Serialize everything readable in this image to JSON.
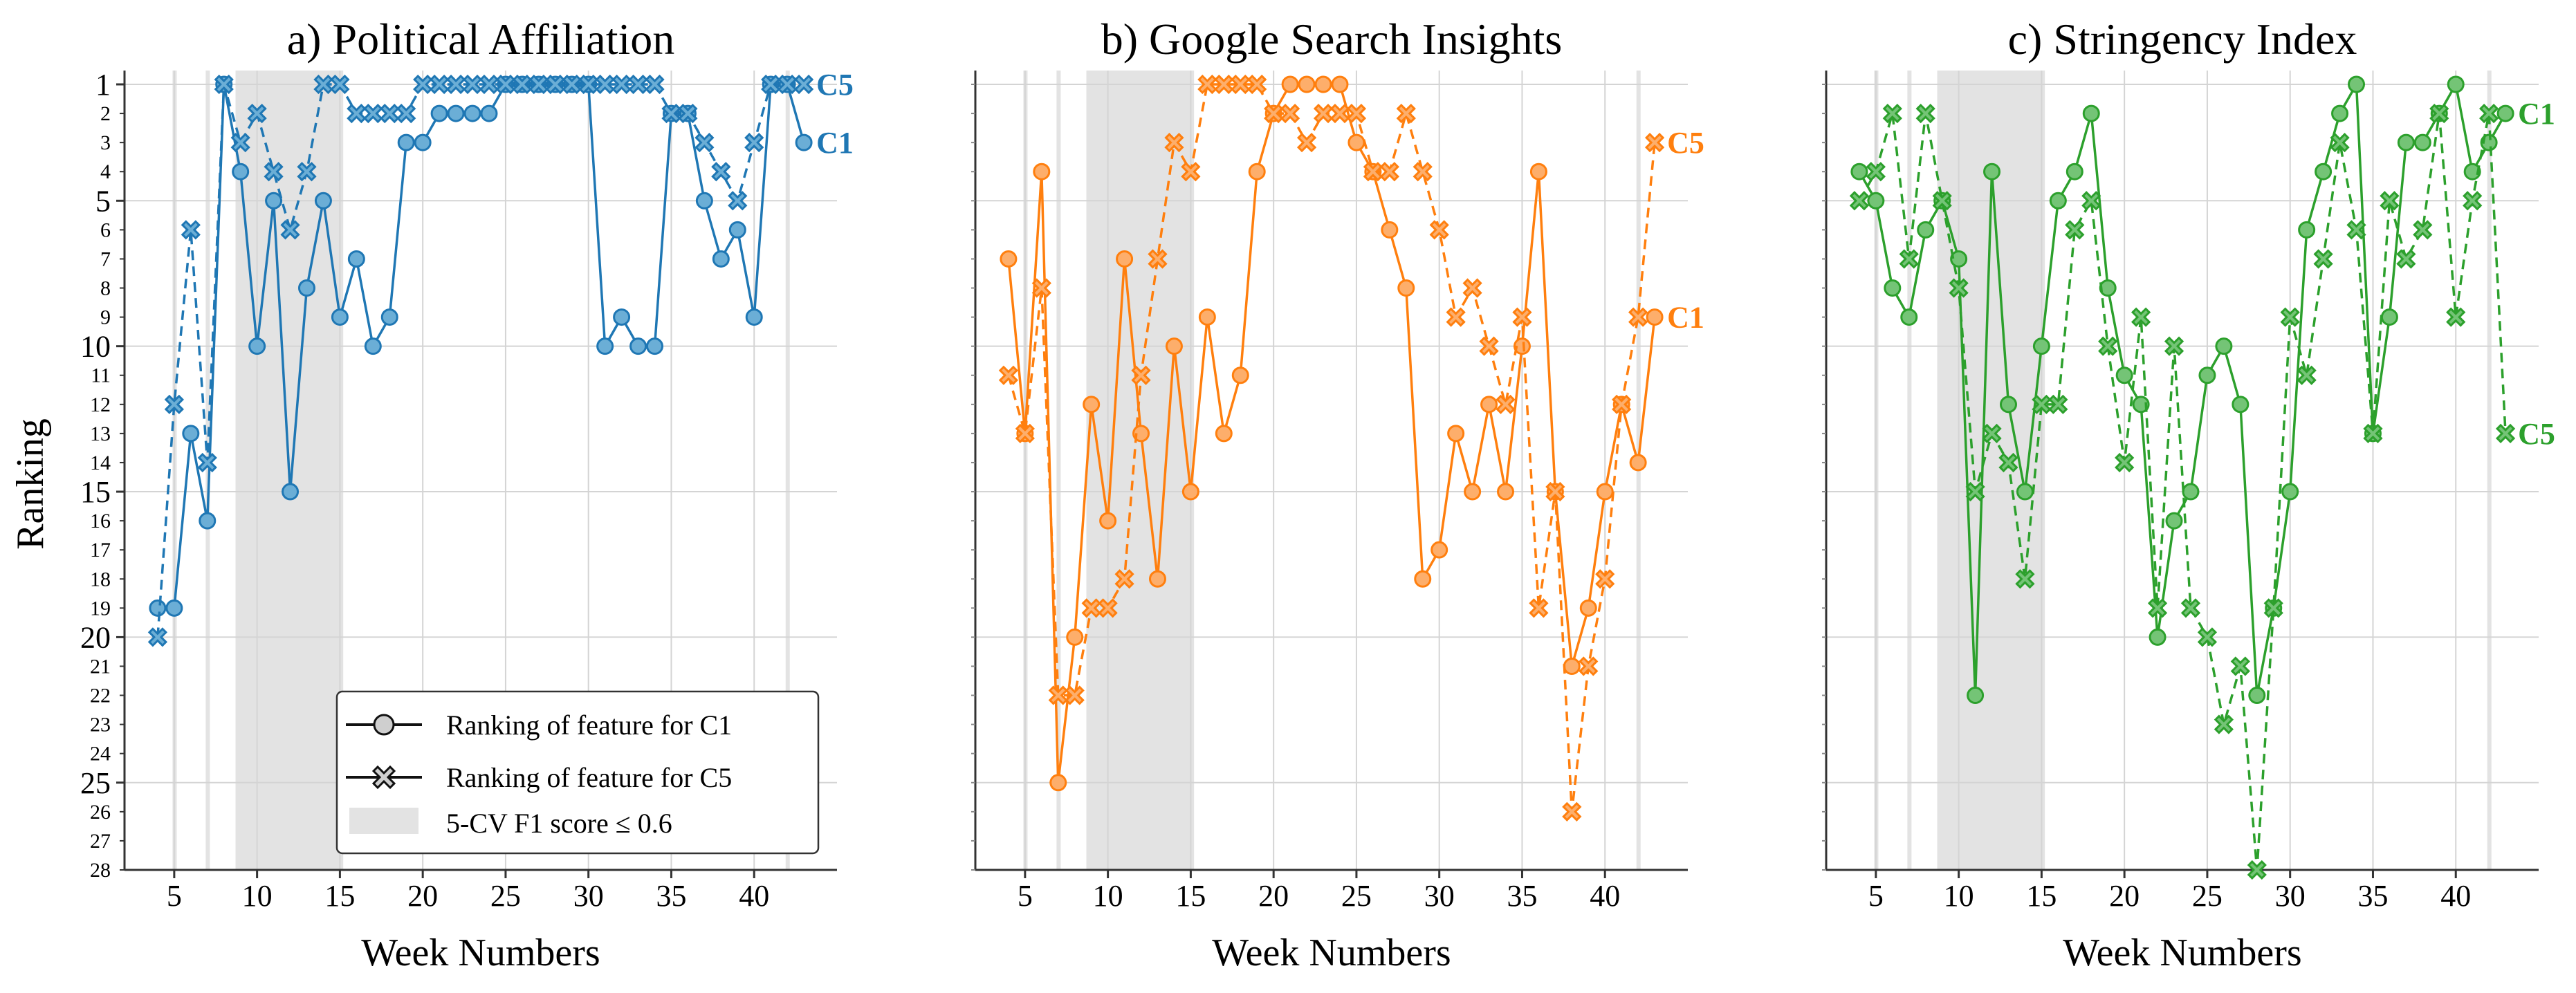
{
  "figure": {
    "ylabel": "Ranking",
    "xlabel": "Week Numbers"
  },
  "legend": {
    "c1_label": "Ranking of feature for C1",
    "c5_label": "Ranking of feature for C5",
    "shade_label": "5-CV F1 score  ≤  0.6"
  },
  "colors": {
    "political": "#1f77b4",
    "political_light": "#6baed6",
    "google": "#ff7f0e",
    "google_light": "#fdae6b",
    "stringency": "#2ca02c",
    "stringency_light": "#74c476",
    "shade": "#e3e3e3",
    "grid": "#d4d4d4"
  },
  "chart_data": [
    {
      "type": "line",
      "title": "a) Political Affiliation",
      "xlabel": "Week Numbers",
      "ylabel": "Ranking",
      "xlim": [
        2,
        45
      ],
      "ylim": [
        28,
        1
      ],
      "x_ticks": [
        5,
        10,
        15,
        20,
        25,
        30,
        35,
        40
      ],
      "y_ticks_major": [
        1,
        5,
        10,
        15,
        20,
        25
      ],
      "y_ticks_minor": [
        2,
        3,
        4,
        6,
        7,
        8,
        9,
        11,
        12,
        13,
        14,
        16,
        17,
        18,
        19,
        21,
        22,
        23,
        24,
        26,
        27,
        28
      ],
      "shaded_weeks": [
        [
          4.9,
          5.1
        ],
        [
          6.9,
          7.1
        ],
        [
          8.7,
          15.2
        ],
        [
          41.9,
          42.1
        ]
      ],
      "series": [
        {
          "name": "C1",
          "marker": "circle",
          "linestyle": "solid",
          "x": [
            4,
            5,
            6,
            7,
            8,
            9,
            10,
            11,
            12,
            13,
            14,
            15,
            16,
            17,
            18,
            19,
            20,
            21,
            22,
            23,
            24,
            25,
            26,
            27,
            28,
            29,
            30,
            31,
            32,
            33,
            34,
            35,
            36,
            37,
            38,
            39,
            40,
            41,
            42,
            43
          ],
          "values": [
            19,
            19,
            13,
            16,
            1,
            4,
            10,
            5,
            15,
            8,
            5,
            9,
            7,
            10,
            9,
            3,
            3,
            2,
            2,
            2,
            2,
            1,
            1,
            1,
            1,
            1,
            1,
            10,
            9,
            10,
            10,
            2,
            2,
            5,
            7,
            6,
            9,
            1,
            1,
            3
          ],
          "end_label": "C1"
        },
        {
          "name": "C5",
          "marker": "x",
          "linestyle": "dashed",
          "x": [
            4,
            5,
            6,
            7,
            8,
            9,
            10,
            11,
            12,
            13,
            14,
            15,
            16,
            17,
            18,
            19,
            20,
            21,
            22,
            23,
            24,
            25,
            26,
            27,
            28,
            29,
            30,
            31,
            32,
            33,
            34,
            35,
            36,
            37,
            38,
            39,
            40,
            41,
            42,
            43
          ],
          "values": [
            20,
            12,
            6,
            14,
            1,
            3,
            2,
            4,
            6,
            4,
            1,
            1,
            2,
            2,
            2,
            2,
            1,
            1,
            1,
            1,
            1,
            1,
            1,
            1,
            1,
            1,
            1,
            1,
            1,
            1,
            1,
            2,
            2,
            3,
            4,
            5,
            3,
            1,
            1,
            1
          ],
          "end_label": "C5"
        }
      ]
    },
    {
      "type": "line",
      "title": "b) Google Search Insights",
      "xlabel": "Week Numbers",
      "xlim": [
        2,
        45
      ],
      "ylim": [
        28,
        1
      ],
      "x_ticks": [
        5,
        10,
        15,
        20,
        25,
        30,
        35,
        40
      ],
      "shaded_weeks": [
        [
          4.9,
          5.1
        ],
        [
          6.9,
          7.1
        ],
        [
          8.7,
          15.2
        ],
        [
          41.9,
          42.1
        ]
      ],
      "series": [
        {
          "name": "C1",
          "marker": "circle",
          "linestyle": "solid",
          "x": [
            4,
            5,
            6,
            7,
            8,
            9,
            10,
            11,
            12,
            13,
            14,
            15,
            16,
            17,
            18,
            19,
            20,
            21,
            22,
            23,
            24,
            25,
            26,
            27,
            28,
            29,
            30,
            31,
            32,
            33,
            34,
            35,
            36,
            37,
            38,
            39,
            40,
            41,
            42,
            43
          ],
          "values": [
            7,
            13,
            4,
            25,
            20,
            12,
            16,
            7,
            13,
            18,
            10,
            15,
            9,
            13,
            11,
            4,
            2,
            1,
            1,
            1,
            1,
            3,
            4,
            6,
            8,
            18,
            17,
            13,
            15,
            12,
            15,
            10,
            4,
            15,
            21,
            19,
            15,
            12,
            14,
            9
          ],
          "end_label": "C1"
        },
        {
          "name": "C5",
          "marker": "x",
          "linestyle": "dashed",
          "x": [
            4,
            5,
            6,
            7,
            8,
            9,
            10,
            11,
            12,
            13,
            14,
            15,
            16,
            17,
            18,
            19,
            20,
            21,
            22,
            23,
            24,
            25,
            26,
            27,
            28,
            29,
            30,
            31,
            32,
            33,
            34,
            35,
            36,
            37,
            38,
            39,
            40,
            41,
            42,
            43
          ],
          "values": [
            11,
            13,
            8,
            22,
            22,
            19,
            19,
            18,
            11,
            7,
            3,
            4,
            1,
            1,
            1,
            1,
            2,
            2,
            3,
            2,
            2,
            2,
            4,
            4,
            2,
            4,
            6,
            9,
            8,
            10,
            12,
            9,
            19,
            15,
            26,
            21,
            18,
            12,
            9,
            3
          ],
          "end_label": "C5"
        }
      ]
    },
    {
      "type": "line",
      "title": "c) Stringency Index",
      "xlabel": "Week Numbers",
      "xlim": [
        2,
        45
      ],
      "ylim": [
        28,
        1
      ],
      "x_ticks": [
        5,
        10,
        15,
        20,
        25,
        30,
        35,
        40
      ],
      "shaded_weeks": [
        [
          4.9,
          5.1
        ],
        [
          6.9,
          7.1
        ],
        [
          8.7,
          15.2
        ],
        [
          41.9,
          42.1
        ]
      ],
      "series": [
        {
          "name": "C1",
          "marker": "circle",
          "linestyle": "solid",
          "x": [
            4,
            5,
            6,
            7,
            8,
            9,
            10,
            11,
            12,
            13,
            14,
            15,
            16,
            17,
            18,
            19,
            20,
            21,
            22,
            23,
            24,
            25,
            26,
            27,
            28,
            29,
            30,
            31,
            32,
            33,
            34,
            35,
            36,
            37,
            38,
            39,
            40,
            41,
            42,
            43
          ],
          "values": [
            4,
            5,
            8,
            9,
            6,
            5,
            7,
            22,
            4,
            12,
            15,
            10,
            5,
            4,
            2,
            8,
            11,
            12,
            20,
            16,
            15,
            11,
            10,
            12,
            22,
            19,
            15,
            6,
            4,
            2,
            1,
            13,
            9,
            3,
            3,
            2,
            1,
            4,
            3,
            2
          ],
          "end_label": "C1"
        },
        {
          "name": "C5",
          "marker": "x",
          "linestyle": "dashed",
          "x": [
            4,
            5,
            6,
            7,
            8,
            9,
            10,
            11,
            12,
            13,
            14,
            15,
            16,
            17,
            18,
            19,
            20,
            21,
            22,
            23,
            24,
            25,
            26,
            27,
            28,
            29,
            30,
            31,
            32,
            33,
            34,
            35,
            36,
            37,
            38,
            39,
            40,
            41,
            42,
            43
          ],
          "values": [
            5,
            4,
            2,
            7,
            2,
            5,
            8,
            15,
            13,
            14,
            18,
            12,
            12,
            6,
            5,
            10,
            14,
            9,
            19,
            10,
            19,
            20,
            23,
            21,
            28,
            19,
            9,
            11,
            7,
            3,
            6,
            13,
            5,
            7,
            6,
            2,
            9,
            5,
            2,
            13
          ],
          "end_label": "C5"
        }
      ]
    }
  ]
}
